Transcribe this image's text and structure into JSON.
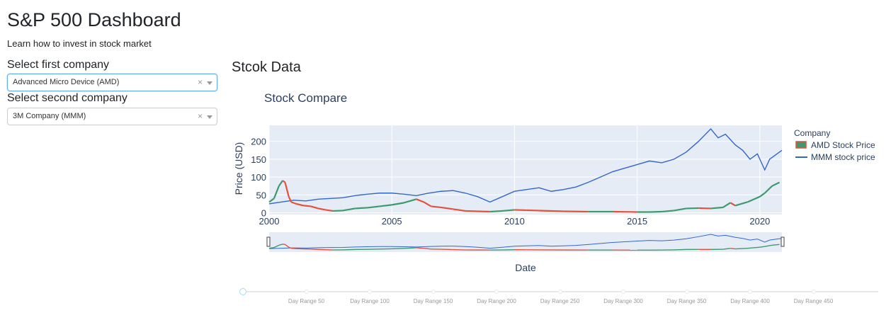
{
  "header": {
    "title": "S&P 500 Dashboard",
    "subtitle": "Learn how to invest in stock market"
  },
  "sidebar": {
    "first_label": "Select first company",
    "first_value": "Advanced Micro Device (AMD)",
    "second_label": "Select second company",
    "second_value": "3M Company (MMM)",
    "clear_glyph": "×"
  },
  "main": {
    "section_title": "Stcok Data"
  },
  "chart_data": {
    "type": "line",
    "title": "Stock Compare",
    "xlabel": "Date",
    "ylabel": "Price (USD)",
    "xlim": [
      2000,
      2020.9
    ],
    "ylim": [
      -5,
      245
    ],
    "x_ticks": [
      "2000",
      "2005",
      "2010",
      "2015",
      "2020"
    ],
    "y_ticks": [
      "0",
      "50",
      "100",
      "150",
      "200"
    ],
    "legend_title": "Company",
    "legend_position": "right",
    "grid": true,
    "series": [
      {
        "name": "AMD Stock Price",
        "style": "candlestick",
        "color_up": "#3D9970",
        "color_down": "#E1523D",
        "x": [
          2000.0,
          2000.2,
          2000.4,
          2000.55,
          2000.65,
          2000.8,
          2000.9,
          2001.1,
          2001.4,
          2001.7,
          2002.0,
          2002.3,
          2002.6,
          2003.0,
          2003.5,
          2004.0,
          2004.5,
          2005.0,
          2005.5,
          2006.0,
          2006.3,
          2006.6,
          2007.0,
          2007.5,
          2008.0,
          2008.5,
          2009.0,
          2009.5,
          2010.0,
          2010.5,
          2011.0,
          2012.0,
          2013.0,
          2014.0,
          2015.0,
          2015.5,
          2016.0,
          2016.5,
          2017.0,
          2017.5,
          2018.0,
          2018.5,
          2018.8,
          2019.0,
          2019.5,
          2020.0,
          2020.2,
          2020.5,
          2020.8
        ],
        "values": [
          30,
          40,
          75,
          90,
          85,
          45,
          30,
          25,
          20,
          18,
          12,
          8,
          5,
          6,
          12,
          14,
          18,
          22,
          28,
          38,
          30,
          18,
          15,
          10,
          5,
          4,
          3,
          5,
          8,
          7,
          6,
          4,
          3,
          3,
          2,
          2,
          3,
          6,
          12,
          13,
          12,
          15,
          28,
          20,
          30,
          45,
          55,
          75,
          85
        ]
      },
      {
        "name": "MMM stock price",
        "style": "line",
        "color": "#3366CC",
        "x": [
          2000.0,
          2000.5,
          2001.0,
          2001.5,
          2002.0,
          2002.5,
          2003.0,
          2003.5,
          2004.0,
          2004.5,
          2005.0,
          2005.5,
          2006.0,
          2006.5,
          2007.0,
          2007.5,
          2008.0,
          2008.5,
          2009.0,
          2009.5,
          2010.0,
          2010.5,
          2011.0,
          2011.5,
          2012.0,
          2012.5,
          2013.0,
          2013.5,
          2014.0,
          2014.5,
          2015.0,
          2015.5,
          2016.0,
          2016.5,
          2017.0,
          2017.5,
          2018.0,
          2018.3,
          2018.6,
          2019.0,
          2019.3,
          2019.6,
          2019.9,
          2020.2,
          2020.4,
          2020.7,
          2020.9
        ],
        "values": [
          25,
          30,
          35,
          33,
          38,
          40,
          42,
          48,
          52,
          55,
          55,
          52,
          48,
          55,
          60,
          62,
          55,
          45,
          30,
          45,
          60,
          65,
          70,
          60,
          65,
          72,
          85,
          100,
          115,
          125,
          135,
          145,
          140,
          150,
          170,
          200,
          235,
          210,
          220,
          190,
          175,
          150,
          165,
          120,
          150,
          165,
          175
        ]
      }
    ]
  },
  "slider": {
    "marks": [
      "Day Range 50",
      "Day Range 100",
      "Day Range 150",
      "Day Range 200",
      "Day Range 250",
      "Day Range 300",
      "Day Range 350",
      "Day Range 400",
      "Day Range 450"
    ]
  }
}
